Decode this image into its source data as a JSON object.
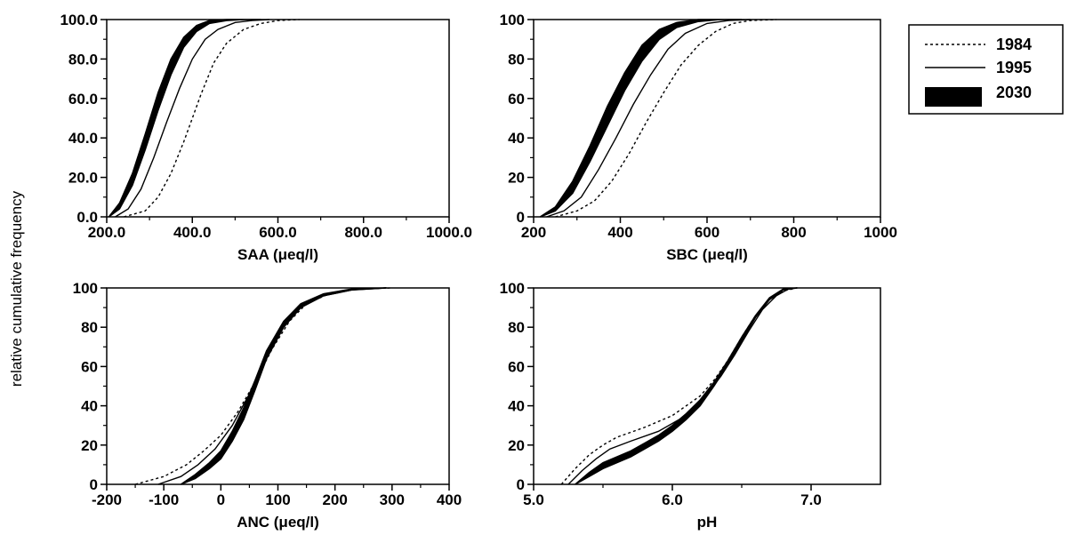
{
  "figure": {
    "ylabel": "relative cumulative frequency",
    "legend": {
      "placement": "top-right",
      "entries": [
        {
          "label": "1984",
          "style": "dotted"
        },
        {
          "label": "1995",
          "style": "solid"
        },
        {
          "label": "2030",
          "style": "thick-band"
        }
      ]
    }
  },
  "chart_data": [
    {
      "type": "line",
      "xlabel": "SAA (μeq/l)",
      "xlim": [
        200,
        1000
      ],
      "ylim": [
        0,
        100
      ],
      "xticks": [
        "200.0",
        "400.0",
        "600.0",
        "800.0",
        "1000.0"
      ],
      "xtick_values": [
        200,
        400,
        600,
        800,
        1000
      ],
      "yticks": [
        "0.0",
        "20.0",
        "40.0",
        "60.0",
        "80.0",
        "100.0"
      ],
      "ytick_values": [
        0,
        20,
        40,
        60,
        80,
        100
      ],
      "series": [
        {
          "name": "1984",
          "style": "dotted",
          "x": [
            240,
            290,
            320,
            350,
            380,
            400,
            420,
            450,
            480,
            520,
            560,
            600,
            650
          ],
          "y": [
            0,
            3,
            10,
            22,
            38,
            50,
            62,
            78,
            88,
            95,
            98,
            99.5,
            100
          ]
        },
        {
          "name": "1995",
          "style": "solid",
          "x": [
            220,
            250,
            280,
            310,
            340,
            370,
            400,
            430,
            460,
            500,
            540,
            580
          ],
          "y": [
            0,
            4,
            14,
            30,
            48,
            65,
            80,
            90,
            95,
            98.5,
            99.5,
            100
          ]
        },
        {
          "name": "2030",
          "style": "band",
          "x": [
            205,
            230,
            260,
            290,
            320,
            350,
            380,
            410,
            440,
            480,
            520,
            560
          ],
          "y_low": [
            0,
            4,
            16,
            34,
            54,
            72,
            86,
            94,
            98,
            99.5,
            100,
            100
          ],
          "y_high": [
            0,
            7,
            22,
            42,
            63,
            80,
            91,
            97,
            99.5,
            100,
            100,
            100
          ]
        }
      ]
    },
    {
      "type": "line",
      "xlabel": "SBC (μeq/l)",
      "xlim": [
        200,
        1000
      ],
      "ylim": [
        0,
        100
      ],
      "xticks": [
        "200",
        "400",
        "600",
        "800",
        "1000"
      ],
      "xtick_values": [
        200,
        400,
        600,
        800,
        1000
      ],
      "yticks": [
        "0",
        "20",
        "40",
        "60",
        "80",
        "100"
      ],
      "ytick_values": [
        0,
        20,
        40,
        60,
        80,
        100
      ],
      "series": [
        {
          "name": "1984",
          "style": "dotted",
          "x": [
            250,
            300,
            340,
            380,
            420,
            460,
            500,
            540,
            580,
            620,
            660,
            700,
            760
          ],
          "y": [
            0,
            3,
            8,
            18,
            32,
            48,
            63,
            77,
            87,
            94,
            98,
            99.5,
            100
          ]
        },
        {
          "name": "1995",
          "style": "solid",
          "x": [
            230,
            270,
            310,
            350,
            390,
            430,
            470,
            510,
            550,
            600,
            650,
            700
          ],
          "y": [
            0,
            3,
            10,
            24,
            40,
            57,
            72,
            85,
            93,
            98,
            99.5,
            100
          ]
        },
        {
          "name": "2030",
          "style": "band",
          "x": [
            215,
            250,
            290,
            330,
            370,
            410,
            450,
            490,
            530,
            580,
            630,
            680
          ],
          "y_low": [
            0,
            3,
            12,
            28,
            46,
            64,
            79,
            90,
            96,
            99,
            100,
            100
          ],
          "y_high": [
            0,
            5,
            18,
            36,
            56,
            73,
            87,
            95,
            98.5,
            100,
            100,
            100
          ]
        }
      ]
    },
    {
      "type": "line",
      "xlabel": "ANC (μeq/l)",
      "xlim": [
        -200,
        400
      ],
      "ylim": [
        0,
        100
      ],
      "xticks": [
        "-200",
        "-100",
        "0",
        "100",
        "200",
        "300",
        "400"
      ],
      "xtick_values": [
        -200,
        -100,
        0,
        100,
        200,
        300,
        400
      ],
      "yticks": [
        "0",
        "20",
        "40",
        "60",
        "80",
        "100"
      ],
      "ytick_values": [
        0,
        20,
        40,
        60,
        80,
        100
      ],
      "series": [
        {
          "name": "1984",
          "style": "dotted",
          "x": [
            -150,
            -100,
            -60,
            -30,
            0,
            30,
            60,
            90,
            120,
            150,
            190,
            240,
            300
          ],
          "y": [
            0,
            4,
            10,
            17,
            25,
            37,
            52,
            69,
            83,
            92,
            97,
            99.5,
            100
          ]
        },
        {
          "name": "1995",
          "style": "solid",
          "x": [
            -110,
            -70,
            -40,
            -10,
            20,
            50,
            80,
            110,
            140,
            180,
            230,
            290
          ],
          "y": [
            0,
            4,
            10,
            18,
            30,
            46,
            64,
            80,
            90,
            96,
            99,
            100
          ]
        },
        {
          "name": "2030",
          "style": "band",
          "x": [
            -70,
            -45,
            -20,
            0,
            20,
            40,
            60,
            80,
            110,
            140,
            180,
            230,
            290
          ],
          "y_low": [
            0,
            3,
            8,
            13,
            22,
            33,
            48,
            64,
            80,
            90,
            96,
            99,
            100
          ],
          "y_high": [
            0,
            5,
            11,
            17,
            27,
            39,
            53,
            68,
            83,
            92,
            97,
            99.5,
            100
          ]
        }
      ]
    },
    {
      "type": "line",
      "xlabel": "pH",
      "xlim": [
        5.0,
        7.5
      ],
      "ylim": [
        0,
        100
      ],
      "xticks": [
        "5.0",
        "6.0",
        "7.0"
      ],
      "xtick_values": [
        5.0,
        6.0,
        7.0
      ],
      "yticks": [
        "0",
        "20",
        "40",
        "60",
        "80",
        "100"
      ],
      "ytick_values": [
        0,
        20,
        40,
        60,
        80,
        100
      ],
      "series": [
        {
          "name": "1984",
          "style": "dotted",
          "x": [
            5.2,
            5.3,
            5.4,
            5.5,
            5.6,
            5.8,
            6.0,
            6.2,
            6.3,
            6.4,
            6.5,
            6.6,
            6.7,
            6.8,
            6.9
          ],
          "y": [
            0,
            8,
            15,
            20,
            24,
            29,
            35,
            45,
            53,
            63,
            75,
            86,
            94,
            98.5,
            100
          ]
        },
        {
          "name": "1995",
          "style": "solid",
          "x": [
            5.25,
            5.35,
            5.45,
            5.55,
            5.7,
            5.9,
            6.1,
            6.25,
            6.35,
            6.45,
            6.55,
            6.65,
            6.75,
            6.85
          ],
          "y": [
            0,
            7,
            13,
            18,
            22,
            27,
            35,
            46,
            55,
            66,
            78,
            89,
            96,
            100
          ]
        },
        {
          "name": "2030",
          "style": "band",
          "x": [
            5.3,
            5.4,
            5.5,
            5.6,
            5.7,
            5.8,
            5.9,
            6.0,
            6.1,
            6.2,
            6.3,
            6.4,
            6.5,
            6.6,
            6.7,
            6.8,
            6.9
          ],
          "y_low": [
            0,
            4,
            8,
            11,
            14,
            18,
            22,
            27,
            33,
            40,
            50,
            61,
            73,
            85,
            94,
            99,
            100
          ],
          "y_high": [
            0,
            6,
            11,
            14,
            17,
            21,
            25,
            30,
            36,
            43,
            52,
            63,
            75,
            86,
            95,
            99.5,
            100
          ]
        }
      ]
    }
  ]
}
